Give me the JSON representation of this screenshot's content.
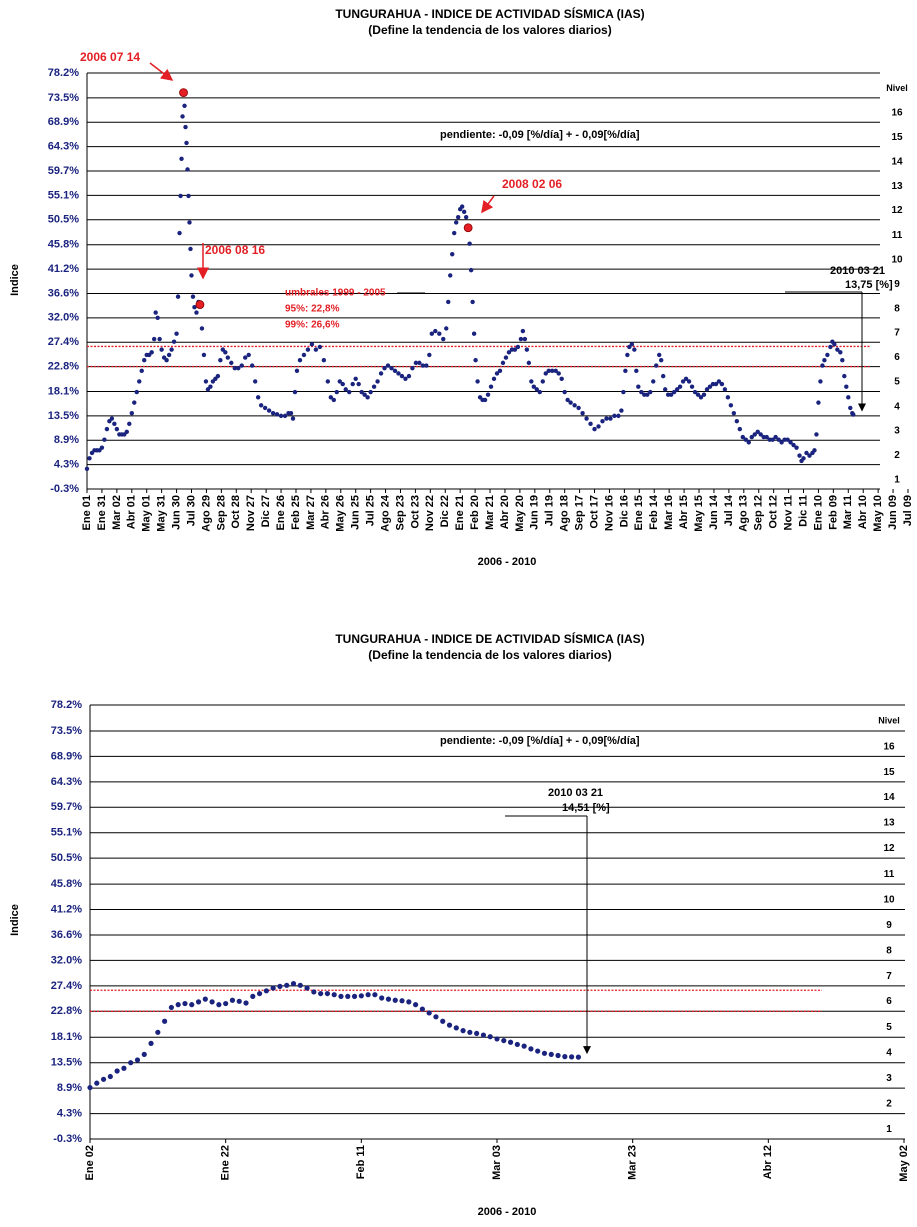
{
  "chart_data": [
    {
      "type": "scatter",
      "title": "TUNGURAHUA - INDICE DE ACTIVIDAD SÍSMICA (IAS)",
      "subtitle": "(Define la tendencia de los valores diarios)",
      "ylabel": "Indice",
      "xlabel": "2006 - 2010",
      "color": "#1a237e",
      "annotation_color": "#e31e24",
      "grid": true,
      "ylim": [
        -0.3,
        78.2
      ],
      "yticks": [
        {
          "value": -0.3,
          "label": "-0.3%"
        },
        {
          "value": 4.3,
          "label": "4.3%"
        },
        {
          "value": 8.9,
          "label": "8.9%"
        },
        {
          "value": 13.5,
          "label": "13.5%"
        },
        {
          "value": 18.1,
          "label": "18.1%"
        },
        {
          "value": 22.8,
          "label": "22.8%"
        },
        {
          "value": 27.4,
          "label": "27.4%"
        },
        {
          "value": 32.0,
          "label": "32.0%"
        },
        {
          "value": 36.6,
          "label": "36.6%"
        },
        {
          "value": 41.2,
          "label": "41.2%"
        },
        {
          "value": 45.8,
          "label": "45.8%"
        },
        {
          "value": 50.5,
          "label": "50.5%"
        },
        {
          "value": 55.1,
          "label": "55.1%"
        },
        {
          "value": 59.7,
          "label": "59.7%"
        },
        {
          "value": 64.3,
          "label": "64.3%"
        },
        {
          "value": 68.9,
          "label": "68.9%"
        },
        {
          "value": 73.5,
          "label": "73.5%"
        },
        {
          "value": 78.2,
          "label": "78.2%"
        }
      ],
      "xlim": [
        0,
        1650
      ],
      "xticks": [
        {
          "value": 0,
          "label": "Ene 01"
        },
        {
          "value": 30,
          "label": "Ene 31"
        },
        {
          "value": 60,
          "label": "Mar 02"
        },
        {
          "value": 90,
          "label": "Abr 01"
        },
        {
          "value": 120,
          "label": "May 01"
        },
        {
          "value": 150,
          "label": "May 31"
        },
        {
          "value": 180,
          "label": "Jun 30"
        },
        {
          "value": 210,
          "label": "Jul 30"
        },
        {
          "value": 240,
          "label": "Ago 29"
        },
        {
          "value": 270,
          "label": "Sep 28"
        },
        {
          "value": 300,
          "label": "Oct 28"
        },
        {
          "value": 330,
          "label": "Nov 27"
        },
        {
          "value": 360,
          "label": "Dic 27"
        },
        {
          "value": 390,
          "label": "Ene 26"
        },
        {
          "value": 420,
          "label": "Feb 25"
        },
        {
          "value": 450,
          "label": "Mar 27"
        },
        {
          "value": 480,
          "label": "Abr 26"
        },
        {
          "value": 510,
          "label": "May 26"
        },
        {
          "value": 540,
          "label": "Jun 25"
        },
        {
          "value": 570,
          "label": "Jul 25"
        },
        {
          "value": 600,
          "label": "Ago 24"
        },
        {
          "value": 630,
          "label": "Sep 23"
        },
        {
          "value": 660,
          "label": "Oct 23"
        },
        {
          "value": 690,
          "label": "Nov 22"
        },
        {
          "value": 720,
          "label": "Dic 22"
        },
        {
          "value": 750,
          "label": "Ene 21"
        },
        {
          "value": 780,
          "label": "Feb 20"
        },
        {
          "value": 810,
          "label": "Mar 21"
        },
        {
          "value": 840,
          "label": "Abr 20"
        },
        {
          "value": 870,
          "label": "May 20"
        },
        {
          "value": 900,
          "label": "Jun 19"
        },
        {
          "value": 930,
          "label": "Jul 19"
        },
        {
          "value": 960,
          "label": "Ago 18"
        },
        {
          "value": 990,
          "label": "Sep 17"
        },
        {
          "value": 1020,
          "label": "Oct 17"
        },
        {
          "value": 1050,
          "label": "Nov 16"
        },
        {
          "value": 1080,
          "label": "Dic 16"
        },
        {
          "value": 1110,
          "label": "Ene 15"
        },
        {
          "value": 1140,
          "label": "Feb 14"
        },
        {
          "value": 1170,
          "label": "Mar 16"
        },
        {
          "value": 1200,
          "label": "Abr 15"
        },
        {
          "value": 1230,
          "label": "May 15"
        },
        {
          "value": 1260,
          "label": "Jun 14"
        },
        {
          "value": 1290,
          "label": "Jul 14"
        },
        {
          "value": 1320,
          "label": "Ago 13"
        },
        {
          "value": 1350,
          "label": "Sep 12"
        },
        {
          "value": 1380,
          "label": "Oct 12"
        },
        {
          "value": 1410,
          "label": "Nov 11"
        },
        {
          "value": 1440,
          "label": "Dic 11"
        },
        {
          "value": 1470,
          "label": "Ene 10"
        },
        {
          "value": 1500,
          "label": "Feb 09"
        },
        {
          "value": 1530,
          "label": "Mar 11"
        },
        {
          "value": 1560,
          "label": "Abr 10"
        },
        {
          "value": 1590,
          "label": "May 10"
        },
        {
          "value": 1620,
          "label": "Jun 09"
        },
        {
          "value": 1650,
          "label": "Jul 09"
        }
      ],
      "x": [
        0,
        5,
        10,
        15,
        20,
        25,
        30,
        35,
        40,
        45,
        50,
        55,
        60,
        65,
        70,
        75,
        80,
        85,
        90,
        95,
        100,
        105,
        110,
        115,
        120,
        125,
        130,
        135,
        138,
        142,
        146,
        150,
        155,
        160,
        165,
        170,
        175,
        180,
        183,
        186,
        188,
        190,
        192,
        194,
        196,
        198,
        200,
        202,
        204,
        206,
        208,
        210,
        213,
        216,
        220,
        224,
        227,
        231,
        235,
        239,
        243,
        248,
        253,
        258,
        263,
        268,
        273,
        278,
        283,
        290,
        297,
        304,
        311,
        318,
        325,
        332,
        338,
        344,
        350,
        358,
        366,
        374,
        382,
        390,
        398,
        405,
        410,
        414,
        418,
        422,
        428,
        436,
        444,
        452,
        460,
        468,
        476,
        484,
        490,
        496,
        502,
        508,
        514,
        520,
        527,
        534,
        540,
        546,
        552,
        558,
        564,
        570,
        577,
        584,
        591,
        598,
        605,
        612,
        619,
        626,
        633,
        640,
        647,
        654,
        661,
        668,
        675,
        682,
        688,
        693,
        700,
        708,
        716,
        722,
        726,
        730,
        734,
        738,
        742,
        746,
        750,
        754,
        758,
        762,
        766,
        769,
        772,
        775,
        778,
        781,
        785,
        790,
        795,
        800,
        806,
        812,
        818,
        824,
        830,
        836,
        842,
        848,
        854,
        860,
        866,
        872,
        876,
        880,
        884,
        888,
        893,
        898,
        904,
        910,
        916,
        922,
        928,
        935,
        942,
        948,
        954,
        960,
        966,
        972,
        980,
        988,
        996,
        1004,
        1012,
        1020,
        1028,
        1036,
        1044,
        1052,
        1060,
        1068,
        1074,
        1078,
        1082,
        1086,
        1090,
        1095,
        1100,
        1104,
        1108,
        1114,
        1120,
        1126,
        1132,
        1138,
        1144,
        1150,
        1154,
        1158,
        1162,
        1168,
        1174,
        1180,
        1186,
        1192,
        1198,
        1204,
        1210,
        1216,
        1222,
        1228,
        1234,
        1240,
        1246,
        1252,
        1258,
        1264,
        1270,
        1276,
        1282,
        1288,
        1294,
        1300,
        1306,
        1312,
        1318,
        1324,
        1330,
        1336,
        1342,
        1348,
        1354,
        1360,
        1366,
        1372,
        1378,
        1384,
        1390,
        1396,
        1402,
        1408,
        1414,
        1420,
        1426,
        1432,
        1436,
        1440,
        1446,
        1452,
        1458,
        1462,
        1466,
        1470,
        1474,
        1478,
        1482,
        1488,
        1494,
        1498,
        1502,
        1508,
        1514,
        1518,
        1522,
        1526,
        1530,
        1534,
        1538,
        1540
      ],
      "values": [
        3.5,
        5.5,
        6.5,
        7,
        7,
        7,
        7.5,
        9,
        11,
        12.5,
        13,
        12,
        11,
        10,
        10,
        10,
        10.5,
        12,
        14,
        16,
        18,
        20,
        22,
        24,
        25,
        25,
        25.5,
        28,
        33,
        32,
        28,
        26,
        24.5,
        24,
        25,
        26,
        27.5,
        29,
        36,
        48,
        55,
        62,
        70,
        74.5,
        72,
        68,
        65,
        60,
        55,
        50,
        45,
        40,
        36,
        34,
        33,
        35,
        34.5,
        30,
        25,
        20,
        18.5,
        19,
        20,
        20.5,
        21,
        24,
        26,
        25.5,
        24.5,
        23.5,
        22.5,
        22.5,
        23,
        24.5,
        25,
        23,
        20,
        17,
        15.5,
        15,
        14.5,
        14,
        13.8,
        13.5,
        13.5,
        14,
        14,
        13,
        18,
        22,
        24,
        25,
        26,
        27,
        26,
        26.5,
        24,
        20,
        17,
        16.5,
        18,
        20,
        19.5,
        18.5,
        18,
        19.5,
        20.5,
        19.5,
        18,
        17.5,
        17,
        18,
        19,
        20,
        21.5,
        22.5,
        23,
        22.5,
        22,
        21.5,
        21,
        20.5,
        21,
        22.5,
        23.5,
        23.5,
        23,
        23,
        25,
        29,
        29.5,
        29,
        28,
        30,
        35,
        40,
        44,
        48,
        50,
        51,
        52.5,
        53,
        52,
        51,
        49,
        46,
        41,
        35,
        29,
        24,
        20,
        17,
        16.5,
        16.5,
        17.5,
        19,
        20.5,
        21.5,
        22,
        23.5,
        24.5,
        25.5,
        26,
        26,
        26.5,
        28,
        29.5,
        28,
        26,
        23.5,
        20,
        19,
        18.5,
        18,
        20,
        21.5,
        22,
        22,
        22,
        21.5,
        20.5,
        18,
        16.5,
        16,
        15.5,
        15,
        14,
        13,
        12,
        11,
        11.5,
        12.5,
        13,
        13,
        13.5,
        13.5,
        14.5,
        18,
        22,
        25,
        26.5,
        27,
        26,
        22,
        19,
        18,
        17.5,
        17.5,
        18,
        20,
        23,
        25,
        24,
        21,
        18.5,
        17.5,
        17.5,
        18,
        18.5,
        19,
        20,
        20.5,
        20,
        19,
        18,
        17.5,
        17,
        17.5,
        18.5,
        19,
        19.5,
        19.5,
        20,
        19.5,
        18.5,
        17,
        15.5,
        14,
        12.5,
        11,
        9.5,
        9,
        8.5,
        9.5,
        10,
        10.5,
        10,
        9.5,
        9.5,
        9,
        9,
        9.5,
        9,
        8.5,
        9,
        9,
        8.5,
        8,
        7.5,
        6,
        5,
        5.5,
        6.5,
        6,
        6.5,
        7,
        10,
        16,
        20,
        23,
        24,
        25,
        26.5,
        27.5,
        27,
        26,
        25.5,
        24,
        21,
        19,
        17,
        15,
        14,
        13.75
      ],
      "slope_text": "pendiente:   -0,09 [%/día] + - 0,09[%/día]",
      "levels_title": "Nivel",
      "levels": [
        1,
        2,
        3,
        4,
        5,
        6,
        7,
        8,
        9,
        10,
        11,
        12,
        13,
        14,
        15,
        16
      ],
      "thresholds": {
        "title": "umbrales 1999 - 2005",
        "color": "#e31e24",
        "lines": [
          {
            "label": "95%:   22,8%",
            "value": 22.8
          },
          {
            "label": "99%:   26,6%",
            "value": 26.6
          }
        ]
      },
      "annotations": [
        {
          "text": "2006 07 14",
          "x": 194,
          "y": 74.5
        },
        {
          "text": "2006 08 16",
          "x": 227,
          "y": 34.5
        },
        {
          "text": "2008 02 06",
          "x": 766,
          "y": 49
        }
      ],
      "last_label": {
        "date": "2010 03 21",
        "text": "13,75 [%]",
        "value": 13.75
      }
    },
    {
      "type": "scatter",
      "title": "TUNGURAHUA - INDICE DE ACTIVIDAD SÍSMICA (IAS)",
      "subtitle": "(Define la tendencia de los valores diarios)",
      "ylabel": "Indice",
      "xlabel": "2006 - 2010",
      "color": "#1a237e",
      "grid": true,
      "ylim": [
        -0.3,
        78.2
      ],
      "yticks": [
        {
          "value": -0.3,
          "label": "-0.3%"
        },
        {
          "value": 4.3,
          "label": "4.3%"
        },
        {
          "value": 8.9,
          "label": "8.9%"
        },
        {
          "value": 13.5,
          "label": "13.5%"
        },
        {
          "value": 18.1,
          "label": "18.1%"
        },
        {
          "value": 22.8,
          "label": "22.8%"
        },
        {
          "value": 27.4,
          "label": "27.4%"
        },
        {
          "value": 32.0,
          "label": "32.0%"
        },
        {
          "value": 36.6,
          "label": "36.6%"
        },
        {
          "value": 41.2,
          "label": "41.2%"
        },
        {
          "value": 45.8,
          "label": "45.8%"
        },
        {
          "value": 50.5,
          "label": "50.5%"
        },
        {
          "value": 55.1,
          "label": "55.1%"
        },
        {
          "value": 59.7,
          "label": "59.7%"
        },
        {
          "value": 64.3,
          "label": "64.3%"
        },
        {
          "value": 68.9,
          "label": "68.9%"
        },
        {
          "value": 73.5,
          "label": "73.5%"
        },
        {
          "value": 78.2,
          "label": "78.2%"
        }
      ],
      "xlim": [
        0,
        120
      ],
      "xticks": [
        {
          "value": 0,
          "label": "Ene 02"
        },
        {
          "value": 20,
          "label": "Ene 22"
        },
        {
          "value": 40,
          "label": "Feb 11"
        },
        {
          "value": 60,
          "label": "Mar 03"
        },
        {
          "value": 80,
          "label": "Mar 23"
        },
        {
          "value": 100,
          "label": "Abr 12"
        },
        {
          "value": 120,
          "label": "May 02"
        }
      ],
      "x": [
        0,
        1,
        2,
        3,
        4,
        5,
        6,
        7,
        8,
        9,
        10,
        11,
        12,
        13,
        14,
        15,
        16,
        17,
        18,
        19,
        20,
        21,
        22,
        23,
        24,
        25,
        26,
        27,
        28,
        29,
        30,
        31,
        32,
        33,
        34,
        35,
        36,
        37,
        38,
        39,
        40,
        41,
        42,
        43,
        44,
        45,
        46,
        47,
        48,
        49,
        50,
        51,
        52,
        53,
        54,
        55,
        56,
        57,
        58,
        59,
        60,
        61,
        62,
        63,
        64,
        65,
        66,
        67,
        68,
        69,
        70,
        71,
        72
      ],
      "values": [
        9,
        9.8,
        10.5,
        11,
        12,
        12.5,
        13.5,
        14,
        15,
        17,
        19,
        21,
        23.5,
        24,
        24.2,
        24,
        24.5,
        25,
        24.5,
        24,
        24.2,
        24.8,
        24.6,
        24.3,
        25.5,
        26,
        26.5,
        27,
        27.3,
        27.5,
        27.8,
        27.5,
        27,
        26.3,
        26,
        26,
        25.8,
        25.5,
        25.5,
        25.5,
        25.6,
        25.8,
        25.8,
        25.2,
        25,
        24.8,
        24.7,
        24.5,
        24,
        23.2,
        22.5,
        21.8,
        21,
        20.3,
        19.8,
        19.3,
        19,
        18.8,
        18.5,
        18.2,
        17.8,
        17.5,
        17.2,
        16.8,
        16.5,
        16,
        15.6,
        15.2,
        15,
        14.8,
        14.6,
        14.55,
        14.51
      ],
      "slope_text": "pendiente:   -0,09 [%/día] + - 0,09[%/día]",
      "levels_title": "Nivel",
      "levels": [
        1,
        2,
        3,
        4,
        5,
        6,
        7,
        8,
        9,
        10,
        11,
        12,
        13,
        14,
        15,
        16
      ],
      "thresholds": {
        "color": "#e31e24",
        "lines": [
          {
            "value": 22.8
          },
          {
            "value": 26.6
          }
        ]
      },
      "last_label": {
        "date": "2010 03 21",
        "text": "14,51 [%]",
        "value": 14.51
      }
    }
  ]
}
